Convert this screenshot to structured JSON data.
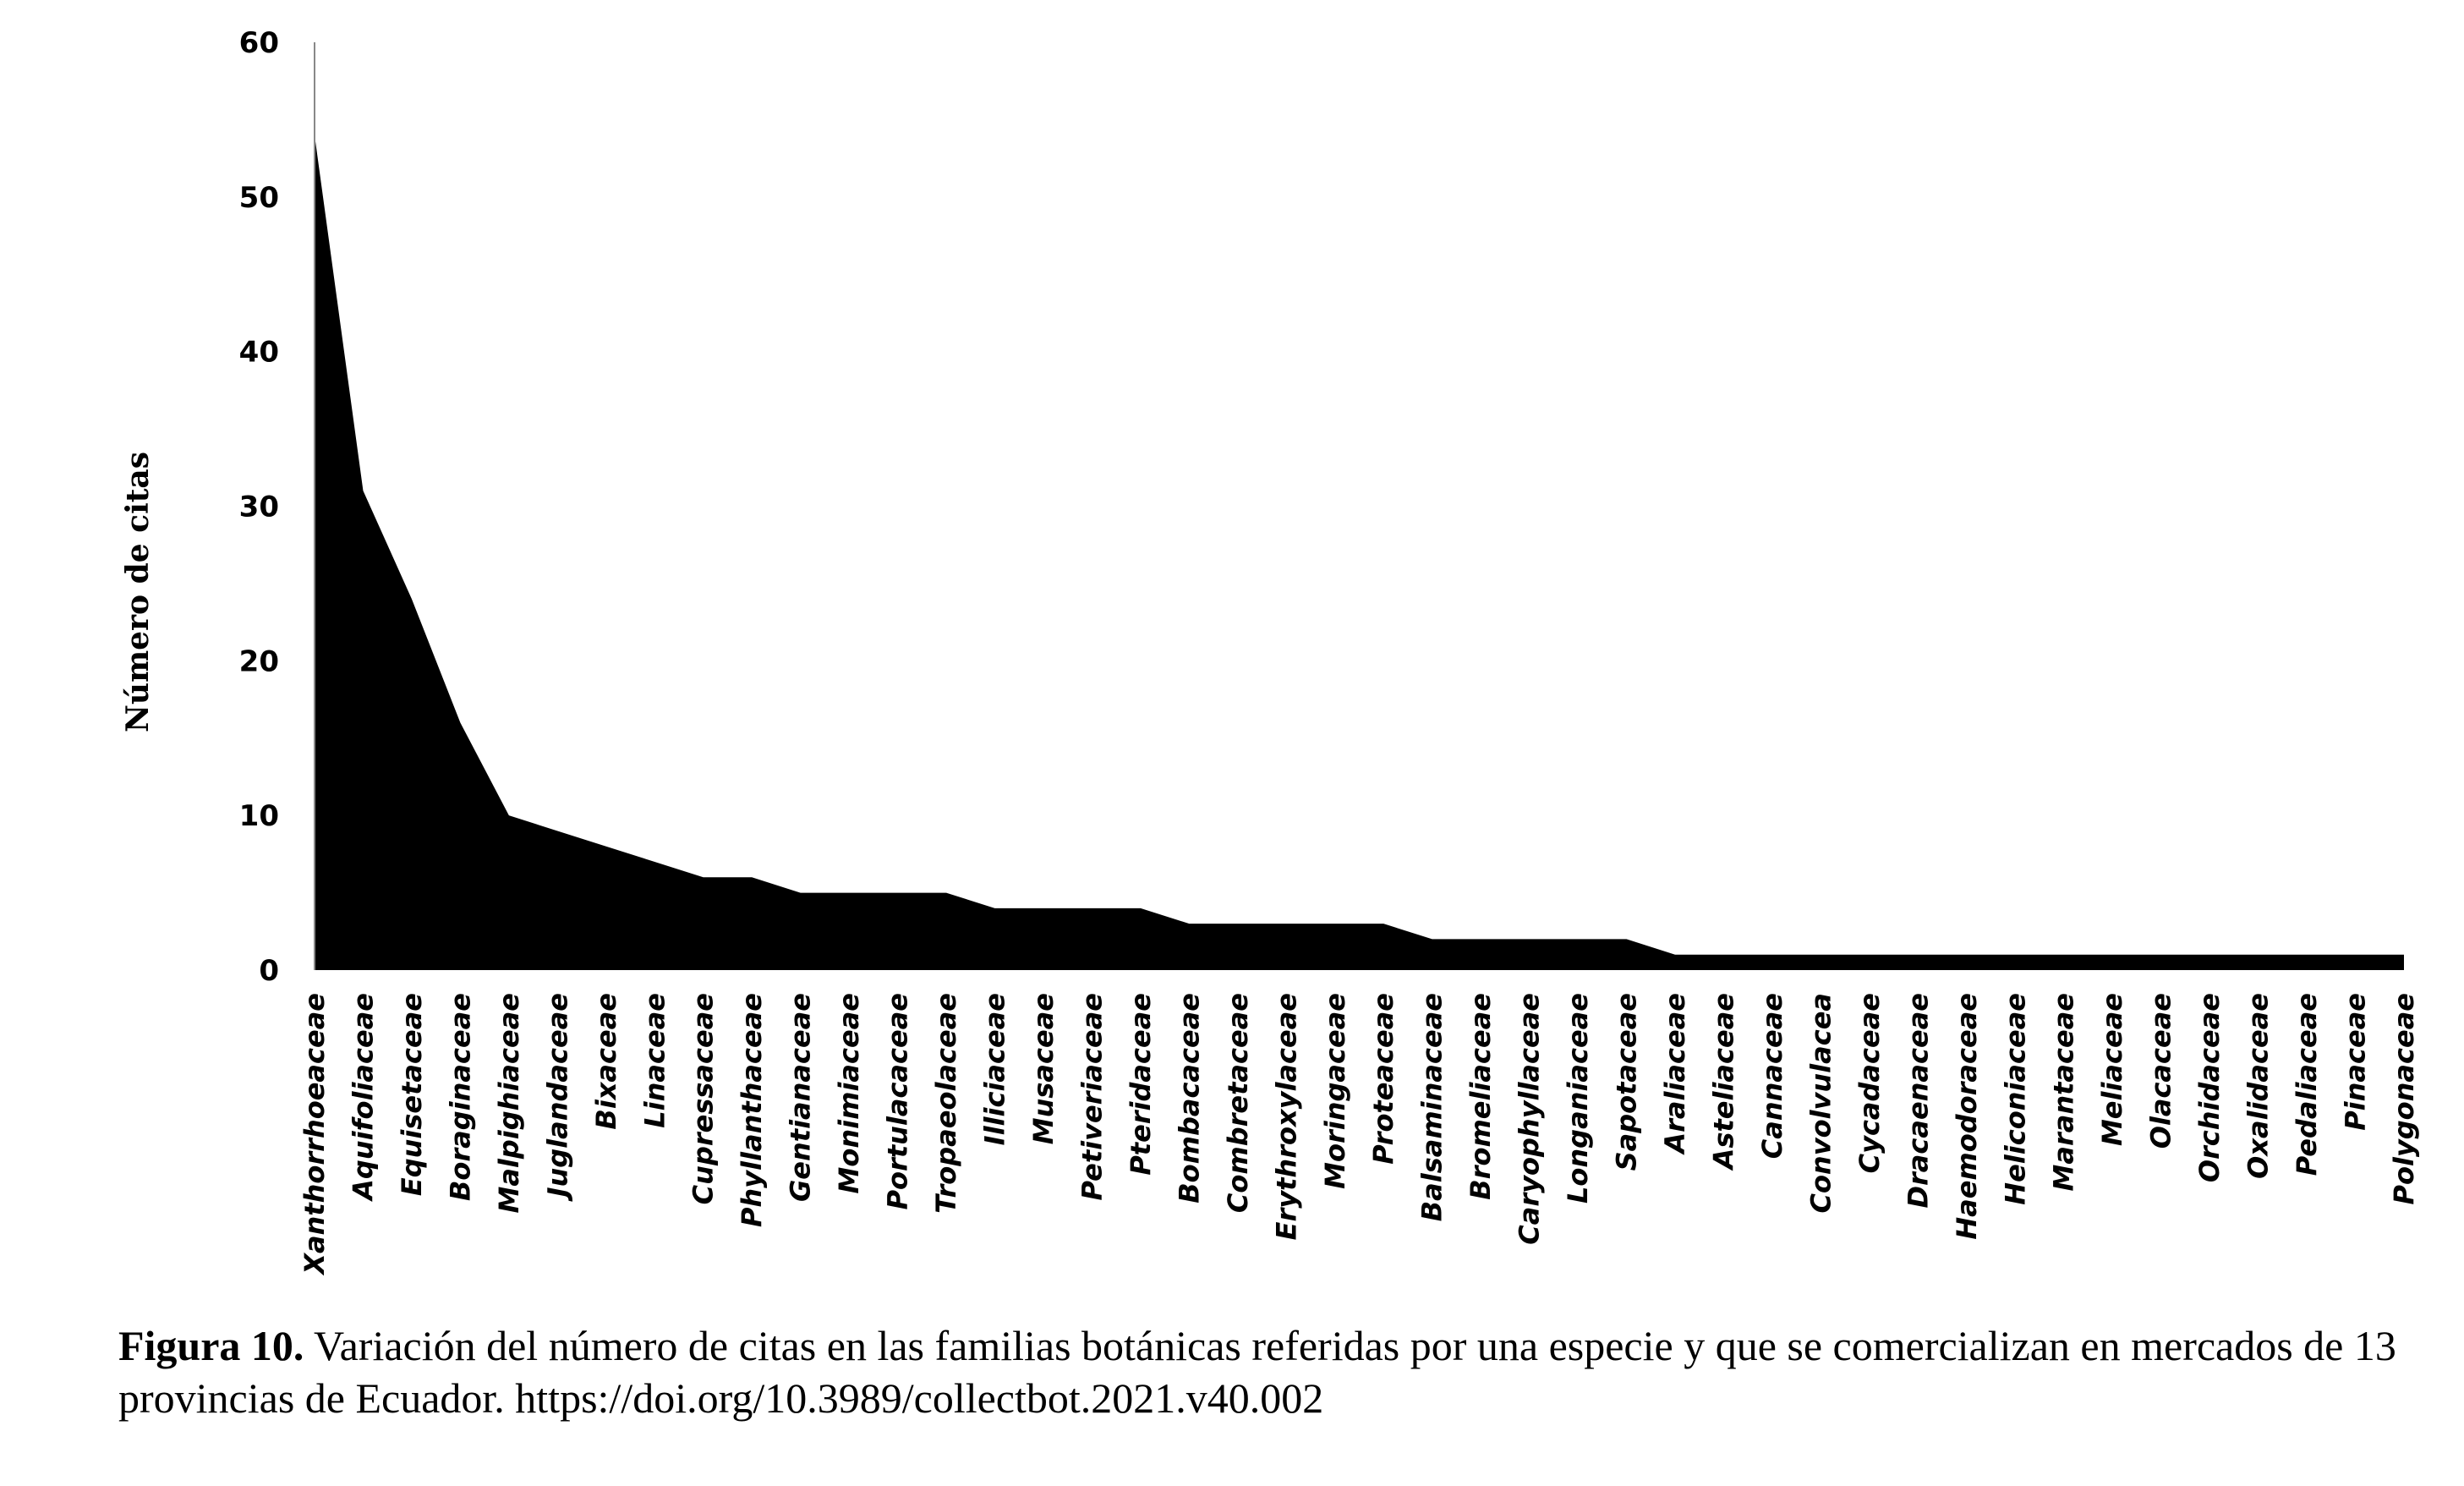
{
  "chart_data": {
    "type": "area",
    "title": "",
    "xlabel": "",
    "ylabel": "Número de citas",
    "ylim": [
      0,
      60
    ],
    "yticks": [
      0,
      10,
      20,
      30,
      40,
      50,
      60
    ],
    "grid": false,
    "legend": "none",
    "fill_color": "#000000",
    "categories": [
      "Xanthorrhoeaceae",
      "Aquifoliaceae",
      "Equisetaceae",
      "Boraginaceae",
      "Malpighiaceae",
      "Juglandaceae",
      "Bixaceae",
      "Linaceae",
      "Cupressaceae",
      "Phyllanthaceae",
      "Gentianaceae",
      "Monimiaceae",
      "Portulacaceae",
      "Tropaeolaceae",
      "Illiciaceae",
      "Musaceae",
      "Petiveriaceae",
      "Pteridaceae",
      "Bombacaceae",
      "Combretaceae",
      "Erythroxylaceae",
      "Moringaceae",
      "Proteaceae",
      "Balsaminaceae",
      "Bromeliaceae",
      "Caryophyllaceae",
      "Longaniaceae",
      "Sapotaceae",
      "Araliaceae",
      "Asteliaceae",
      "Cannaceae",
      "Convolvulacea",
      "Cycadaceae",
      "Dracaenaceae",
      "Haemodoraceae",
      "Heliconiaceae",
      "Marantaceae",
      "Meliaceae",
      "Olacaceae",
      "Orchidaceae",
      "Oxalidaceae",
      "Pedaliaceae",
      "Pinaceae",
      "Polygonaceae"
    ],
    "values": [
      54,
      31,
      24,
      16,
      10,
      9,
      8,
      7,
      6,
      6,
      5,
      5,
      5,
      5,
      4,
      4,
      4,
      4,
      3,
      3,
      3,
      3,
      3,
      2,
      2,
      2,
      2,
      2,
      1,
      1,
      1,
      1,
      1,
      1,
      1,
      1,
      1,
      1,
      1,
      1,
      1,
      1,
      1,
      1
    ]
  },
  "caption": {
    "label": "Figura 10.",
    "text": " Variación del número de citas en las familias botánicas referidas por una especie y que se comercializan en mercados de 13 provincias de Ecuador. https://doi.org/10.3989/collectbot.2021.v40.002"
  }
}
